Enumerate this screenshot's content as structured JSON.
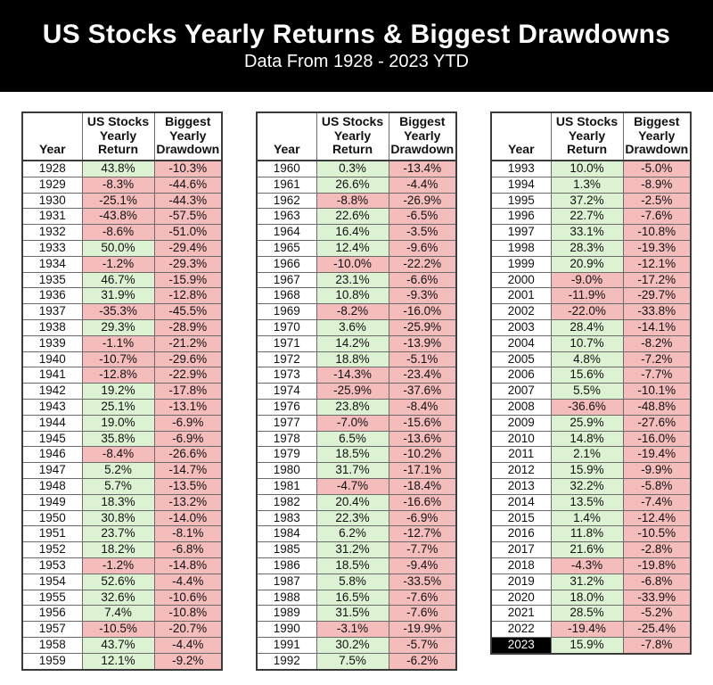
{
  "colors": {
    "banner_bg": "#000000",
    "positive_bg": "#dcf2d3",
    "negative_bg": "#f5bcbc",
    "highlight_bg": "#000000",
    "highlight_text": "#ffffff",
    "grid_line": "#6b6b6b"
  },
  "chart_data": {
    "type": "table",
    "title": "US Stocks Yearly Returns & Biggest Drawdowns",
    "subtitle": "Data From 1928 - 2023 YTD",
    "columns": [
      "Year",
      "US Stocks Yearly Return",
      "Biggest Yearly Drawdown"
    ],
    "highlighted_year": "2023",
    "tables": [
      {
        "rows": [
          [
            "1928",
            "43.8%",
            "-10.3%"
          ],
          [
            "1929",
            "-8.3%",
            "-44.6%"
          ],
          [
            "1930",
            "-25.1%",
            "-44.3%"
          ],
          [
            "1931",
            "-43.8%",
            "-57.5%"
          ],
          [
            "1932",
            "-8.6%",
            "-51.0%"
          ],
          [
            "1933",
            "50.0%",
            "-29.4%"
          ],
          [
            "1934",
            "-1.2%",
            "-29.3%"
          ],
          [
            "1935",
            "46.7%",
            "-15.9%"
          ],
          [
            "1936",
            "31.9%",
            "-12.8%"
          ],
          [
            "1937",
            "-35.3%",
            "-45.5%"
          ],
          [
            "1938",
            "29.3%",
            "-28.9%"
          ],
          [
            "1939",
            "-1.1%",
            "-21.2%"
          ],
          [
            "1940",
            "-10.7%",
            "-29.6%"
          ],
          [
            "1941",
            "-12.8%",
            "-22.9%"
          ],
          [
            "1942",
            "19.2%",
            "-17.8%"
          ],
          [
            "1943",
            "25.1%",
            "-13.1%"
          ],
          [
            "1944",
            "19.0%",
            "-6.9%"
          ],
          [
            "1945",
            "35.8%",
            "-6.9%"
          ],
          [
            "1946",
            "-8.4%",
            "-26.6%"
          ],
          [
            "1947",
            "5.2%",
            "-14.7%"
          ],
          [
            "1948",
            "5.7%",
            "-13.5%"
          ],
          [
            "1949",
            "18.3%",
            "-13.2%"
          ],
          [
            "1950",
            "30.8%",
            "-14.0%"
          ],
          [
            "1951",
            "23.7%",
            "-8.1%"
          ],
          [
            "1952",
            "18.2%",
            "-6.8%"
          ],
          [
            "1953",
            "-1.2%",
            "-14.8%"
          ],
          [
            "1954",
            "52.6%",
            "-4.4%"
          ],
          [
            "1955",
            "32.6%",
            "-10.6%"
          ],
          [
            "1956",
            "7.4%",
            "-10.8%"
          ],
          [
            "1957",
            "-10.5%",
            "-20.7%"
          ],
          [
            "1958",
            "43.7%",
            "-4.4%"
          ],
          [
            "1959",
            "12.1%",
            "-9.2%"
          ]
        ]
      },
      {
        "rows": [
          [
            "1960",
            "0.3%",
            "-13.4%"
          ],
          [
            "1961",
            "26.6%",
            "-4.4%"
          ],
          [
            "1962",
            "-8.8%",
            "-26.9%"
          ],
          [
            "1963",
            "22.6%",
            "-6.5%"
          ],
          [
            "1964",
            "16.4%",
            "-3.5%"
          ],
          [
            "1965",
            "12.4%",
            "-9.6%"
          ],
          [
            "1966",
            "-10.0%",
            "-22.2%"
          ],
          [
            "1967",
            "23.1%",
            "-6.6%"
          ],
          [
            "1968",
            "10.8%",
            "-9.3%"
          ],
          [
            "1969",
            "-8.2%",
            "-16.0%"
          ],
          [
            "1970",
            "3.6%",
            "-25.9%"
          ],
          [
            "1971",
            "14.2%",
            "-13.9%"
          ],
          [
            "1972",
            "18.8%",
            "-5.1%"
          ],
          [
            "1973",
            "-14.3%",
            "-23.4%"
          ],
          [
            "1974",
            "-25.9%",
            "-37.6%"
          ],
          [
            "1976",
            "23.8%",
            "-8.4%"
          ],
          [
            "1977",
            "-7.0%",
            "-15.6%"
          ],
          [
            "1978",
            "6.5%",
            "-13.6%"
          ],
          [
            "1979",
            "18.5%",
            "-10.2%"
          ],
          [
            "1980",
            "31.7%",
            "-17.1%"
          ],
          [
            "1981",
            "-4.7%",
            "-18.4%"
          ],
          [
            "1982",
            "20.4%",
            "-16.6%"
          ],
          [
            "1983",
            "22.3%",
            "-6.9%"
          ],
          [
            "1984",
            "6.2%",
            "-12.7%"
          ],
          [
            "1985",
            "31.2%",
            "-7.7%"
          ],
          [
            "1986",
            "18.5%",
            "-9.4%"
          ],
          [
            "1987",
            "5.8%",
            "-33.5%"
          ],
          [
            "1988",
            "16.5%",
            "-7.6%"
          ],
          [
            "1989",
            "31.5%",
            "-7.6%"
          ],
          [
            "1990",
            "-3.1%",
            "-19.9%"
          ],
          [
            "1991",
            "30.2%",
            "-5.7%"
          ],
          [
            "1992",
            "7.5%",
            "-6.2%"
          ]
        ]
      },
      {
        "rows": [
          [
            "1993",
            "10.0%",
            "-5.0%"
          ],
          [
            "1994",
            "1.3%",
            "-8.9%"
          ],
          [
            "1995",
            "37.2%",
            "-2.5%"
          ],
          [
            "1996",
            "22.7%",
            "-7.6%"
          ],
          [
            "1997",
            "33.1%",
            "-10.8%"
          ],
          [
            "1998",
            "28.3%",
            "-19.3%"
          ],
          [
            "1999",
            "20.9%",
            "-12.1%"
          ],
          [
            "2000",
            "-9.0%",
            "-17.2%"
          ],
          [
            "2001",
            "-11.9%",
            "-29.7%"
          ],
          [
            "2002",
            "-22.0%",
            "-33.8%"
          ],
          [
            "2003",
            "28.4%",
            "-14.1%"
          ],
          [
            "2004",
            "10.7%",
            "-8.2%"
          ],
          [
            "2005",
            "4.8%",
            "-7.2%"
          ],
          [
            "2006",
            "15.6%",
            "-7.7%"
          ],
          [
            "2007",
            "5.5%",
            "-10.1%"
          ],
          [
            "2008",
            "-36.6%",
            "-48.8%"
          ],
          [
            "2009",
            "25.9%",
            "-27.6%"
          ],
          [
            "2010",
            "14.8%",
            "-16.0%"
          ],
          [
            "2011",
            "2.1%",
            "-19.4%"
          ],
          [
            "2012",
            "15.9%",
            "-9.9%"
          ],
          [
            "2013",
            "32.2%",
            "-5.8%"
          ],
          [
            "2014",
            "13.5%",
            "-7.4%"
          ],
          [
            "2015",
            "1.4%",
            "-12.4%"
          ],
          [
            "2016",
            "11.8%",
            "-10.5%"
          ],
          [
            "2017",
            "21.6%",
            "-2.8%"
          ],
          [
            "2018",
            "-4.3%",
            "-19.8%"
          ],
          [
            "2019",
            "31.2%",
            "-6.8%"
          ],
          [
            "2020",
            "18.0%",
            "-33.9%"
          ],
          [
            "2021",
            "28.5%",
            "-5.2%"
          ],
          [
            "2022",
            "-19.4%",
            "-25.4%"
          ],
          [
            "2023",
            "15.9%",
            "-7.8%"
          ]
        ]
      }
    ]
  }
}
